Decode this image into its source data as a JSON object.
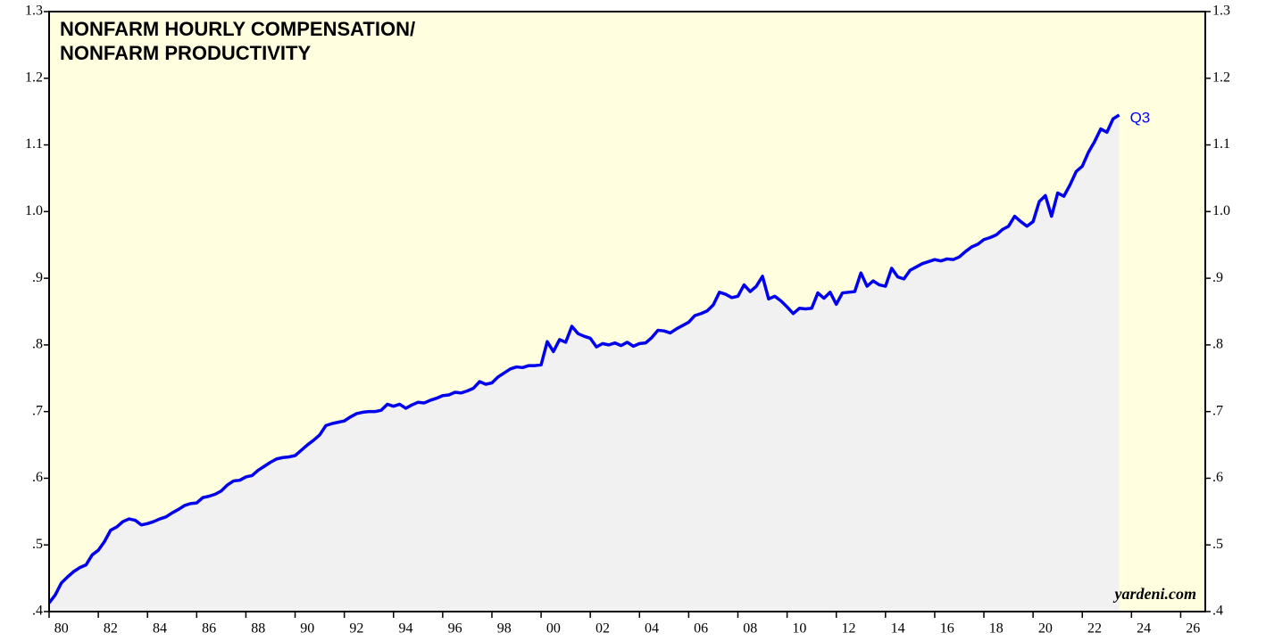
{
  "chart_data": {
    "type": "line",
    "title_lines": [
      "NONFARM HOURLY COMPENSATION/",
      "NONFARM PRODUCTIVITY"
    ],
    "annotations": {
      "last_point": "Q3",
      "source": "yardeni.com"
    },
    "color": "#0000ee",
    "fill_color": "#f1f1f1",
    "background": "#ffffe0",
    "x": [
      1980,
      1980.25,
      1980.5,
      1980.75,
      1981,
      1981.25,
      1981.5,
      1981.75,
      1982,
      1982.25,
      1982.5,
      1982.75,
      1983,
      1983.25,
      1983.5,
      1983.75,
      1984,
      1984.25,
      1984.5,
      1984.75,
      1985,
      1985.25,
      1985.5,
      1985.75,
      1986,
      1986.25,
      1986.5,
      1986.75,
      1987,
      1987.25,
      1987.5,
      1987.75,
      1988,
      1988.25,
      1988.5,
      1988.75,
      1989,
      1989.25,
      1989.5,
      1989.75,
      1990,
      1990.25,
      1990.5,
      1990.75,
      1991,
      1991.25,
      1991.5,
      1991.75,
      1992,
      1992.25,
      1992.5,
      1992.75,
      1993,
      1993.25,
      1993.5,
      1993.75,
      1994,
      1994.25,
      1994.5,
      1994.75,
      1995,
      1995.25,
      1995.5,
      1995.75,
      1996,
      1996.25,
      1996.5,
      1996.75,
      1997,
      1997.25,
      1997.5,
      1997.75,
      1998,
      1998.25,
      1998.5,
      1998.75,
      1999,
      1999.25,
      1999.5,
      1999.75,
      2000,
      2000.25,
      2000.5,
      2000.75,
      2001,
      2001.25,
      2001.5,
      2001.75,
      2002,
      2002.25,
      2002.5,
      2002.75,
      2003,
      2003.25,
      2003.5,
      2003.75,
      2004,
      2004.25,
      2004.5,
      2004.75,
      2005,
      2005.25,
      2005.5,
      2005.75,
      2006,
      2006.25,
      2006.5,
      2006.75,
      2007,
      2007.25,
      2007.5,
      2007.75,
      2008,
      2008.25,
      2008.5,
      2008.75,
      2009,
      2009.25,
      2009.5,
      2009.75,
      2010,
      2010.25,
      2010.5,
      2010.75,
      2011,
      2011.25,
      2011.5,
      2011.75,
      2012,
      2012.25,
      2012.5,
      2012.75,
      2013,
      2013.25,
      2013.5,
      2013.75,
      2014,
      2014.25,
      2014.5,
      2014.75,
      2015,
      2015.25,
      2015.5,
      2015.75,
      2016,
      2016.25,
      2016.5,
      2016.75,
      2017,
      2017.25,
      2017.5,
      2017.75,
      2018,
      2018.25,
      2018.5,
      2018.75,
      2019,
      2019.25,
      2019.5,
      2019.75,
      2020,
      2020.25,
      2020.5,
      2020.75,
      2021,
      2021.25,
      2021.5,
      2021.75,
      2022,
      2022.25,
      2022.5,
      2022.75,
      2023,
      2023.25,
      2023.5
    ],
    "values": [
      0.413,
      0.425,
      0.443,
      0.452,
      0.46,
      0.466,
      0.47,
      0.485,
      0.492,
      0.505,
      0.522,
      0.527,
      0.535,
      0.539,
      0.537,
      0.53,
      0.532,
      0.535,
      0.539,
      0.542,
      0.548,
      0.553,
      0.559,
      0.562,
      0.563,
      0.571,
      0.573,
      0.576,
      0.581,
      0.59,
      0.596,
      0.597,
      0.602,
      0.604,
      0.612,
      0.618,
      0.624,
      0.629,
      0.631,
      0.632,
      0.634,
      0.642,
      0.65,
      0.657,
      0.665,
      0.679,
      0.682,
      0.684,
      0.686,
      0.692,
      0.697,
      0.699,
      0.7,
      0.7,
      0.702,
      0.711,
      0.708,
      0.711,
      0.705,
      0.71,
      0.714,
      0.713,
      0.717,
      0.72,
      0.724,
      0.725,
      0.729,
      0.728,
      0.731,
      0.735,
      0.745,
      0.741,
      0.743,
      0.752,
      0.758,
      0.764,
      0.767,
      0.766,
      0.769,
      0.769,
      0.77,
      0.805,
      0.79,
      0.808,
      0.804,
      0.828,
      0.817,
      0.813,
      0.81,
      0.797,
      0.802,
      0.8,
      0.803,
      0.799,
      0.804,
      0.798,
      0.802,
      0.803,
      0.811,
      0.822,
      0.821,
      0.818,
      0.824,
      0.829,
      0.834,
      0.844,
      0.847,
      0.851,
      0.86,
      0.879,
      0.876,
      0.871,
      0.873,
      0.89,
      0.88,
      0.888,
      0.903,
      0.869,
      0.873,
      0.866,
      0.857,
      0.847,
      0.855,
      0.854,
      0.855,
      0.878,
      0.87,
      0.879,
      0.861,
      0.878,
      0.879,
      0.88,
      0.908,
      0.888,
      0.896,
      0.89,
      0.888,
      0.915,
      0.902,
      0.899,
      0.912,
      0.917,
      0.922,
      0.925,
      0.928,
      0.926,
      0.929,
      0.928,
      0.932,
      0.94,
      0.947,
      0.951,
      0.958,
      0.961,
      0.965,
      0.973,
      0.978,
      0.993,
      0.985,
      0.978,
      0.985,
      1.015,
      1.024,
      0.993,
      1.028,
      1.023,
      1.04,
      1.06,
      1.068,
      1.089,
      1.105,
      1.124,
      1.119,
      1.139,
      1.145
    ],
    "xlim": [
      1980,
      2027
    ],
    "xticks": [
      {
        "value": 1980,
        "label": "80"
      },
      {
        "value": 1982,
        "label": "82"
      },
      {
        "value": 1984,
        "label": "84"
      },
      {
        "value": 1986,
        "label": "86"
      },
      {
        "value": 1988,
        "label": "88"
      },
      {
        "value": 1990,
        "label": "90"
      },
      {
        "value": 1992,
        "label": "92"
      },
      {
        "value": 1994,
        "label": "94"
      },
      {
        "value": 1996,
        "label": "96"
      },
      {
        "value": 1998,
        "label": "98"
      },
      {
        "value": 2000,
        "label": "00"
      },
      {
        "value": 2002,
        "label": "02"
      },
      {
        "value": 2004,
        "label": "04"
      },
      {
        "value": 2006,
        "label": "06"
      },
      {
        "value": 2008,
        "label": "08"
      },
      {
        "value": 2010,
        "label": "10"
      },
      {
        "value": 2012,
        "label": "12"
      },
      {
        "value": 2014,
        "label": "14"
      },
      {
        "value": 2016,
        "label": "16"
      },
      {
        "value": 2018,
        "label": "18"
      },
      {
        "value": 2020,
        "label": "20"
      },
      {
        "value": 2022,
        "label": "22"
      },
      {
        "value": 2024,
        "label": "24"
      },
      {
        "value": 2026,
        "label": "26"
      }
    ],
    "ylim": [
      0.4,
      1.3
    ],
    "yticks": [
      {
        "value": 0.4,
        "label": ".4"
      },
      {
        "value": 0.5,
        "label": ".5"
      },
      {
        "value": 0.6,
        "label": ".6"
      },
      {
        "value": 0.7,
        "label": ".7"
      },
      {
        "value": 0.8,
        "label": ".8"
      },
      {
        "value": 0.9,
        "label": ".9"
      },
      {
        "value": 1.0,
        "label": "1.0"
      },
      1.1,
      1.2,
      1.3
    ]
  }
}
